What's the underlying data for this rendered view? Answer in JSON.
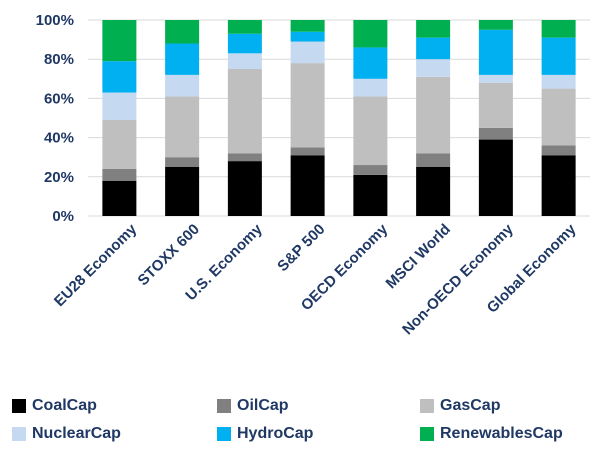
{
  "chart_data": {
    "type": "bar",
    "stacked": true,
    "title": "",
    "xlabel": "",
    "ylabel": "",
    "ylim": [
      0,
      100
    ],
    "yticks": [
      "0%",
      "20%",
      "40%",
      "60%",
      "80%",
      "100%"
    ],
    "grid": true,
    "legend_position": "bottom",
    "text_color": "#1f3864",
    "categories": [
      "EU28 Economy",
      "STOXX 600",
      "U.S. Economy",
      "S&P 500",
      "OECD Economy",
      "MSCI World",
      "Non-OECD Economy",
      "Global Economy"
    ],
    "series": [
      {
        "name": "CoalCap",
        "color": "#000000",
        "values": [
          18,
          25,
          28,
          31,
          21,
          25,
          39,
          31
        ]
      },
      {
        "name": "OilCap",
        "color": "#808080",
        "values": [
          6,
          5,
          4,
          4,
          5,
          7,
          6,
          5
        ]
      },
      {
        "name": "GasCap",
        "color": "#bfbfbf",
        "values": [
          25,
          31,
          43,
          43,
          35,
          39,
          23,
          29
        ]
      },
      {
        "name": "NuclearCap",
        "color": "#c5d9f1",
        "values": [
          14,
          11,
          8,
          11,
          9,
          9,
          4,
          7
        ]
      },
      {
        "name": "HydroCap",
        "color": "#00b0f0",
        "values": [
          16,
          16,
          10,
          5,
          16,
          11,
          23,
          19
        ]
      },
      {
        "name": "RenewablesCap",
        "color": "#00b050",
        "values": [
          21,
          12,
          7,
          6,
          14,
          9,
          5,
          9
        ]
      }
    ]
  }
}
